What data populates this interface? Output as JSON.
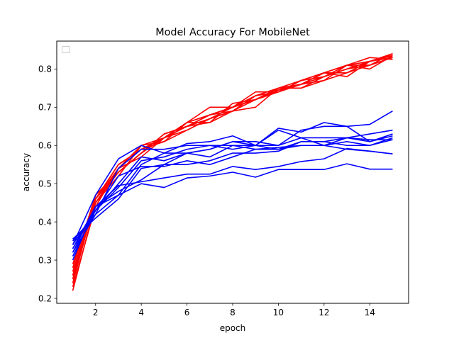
{
  "chart_data": {
    "type": "line",
    "title": "Model Accuracy For MobileNet",
    "xlabel": "epoch",
    "ylabel": "accuracy",
    "xlim": [
      0.3,
      15.7
    ],
    "ylim": [
      0.187,
      0.873
    ],
    "xticks": [
      2,
      4,
      6,
      8,
      10,
      12,
      14
    ],
    "yticks": [
      0.2,
      0.3,
      0.4,
      0.5,
      0.6,
      0.7,
      0.8
    ],
    "xtick_labels": [
      "2",
      "4",
      "6",
      "8",
      "10",
      "12",
      "14"
    ],
    "ytick_labels": [
      "0.2",
      "0.3",
      "0.4",
      "0.5",
      "0.6",
      "0.7",
      "0.8"
    ],
    "grid": false,
    "legend": {
      "placement": "upper-left",
      "entries": []
    },
    "x": [
      1,
      2,
      3,
      4,
      5,
      6,
      7,
      8,
      9,
      10,
      11,
      12,
      13,
      14,
      15
    ],
    "series": [
      {
        "color": "#ff0000",
        "values": [
          0.22,
          0.45,
          0.53,
          0.58,
          0.62,
          0.65,
          0.68,
          0.7,
          0.72,
          0.74,
          0.76,
          0.78,
          0.8,
          0.81,
          0.83
        ]
      },
      {
        "color": "#ff0000",
        "values": [
          0.24,
          0.46,
          0.54,
          0.59,
          0.62,
          0.66,
          0.7,
          0.7,
          0.72,
          0.745,
          0.76,
          0.77,
          0.79,
          0.82,
          0.84
        ]
      },
      {
        "color": "#ff0000",
        "values": [
          0.25,
          0.47,
          0.53,
          0.58,
          0.63,
          0.65,
          0.67,
          0.69,
          0.73,
          0.75,
          0.77,
          0.79,
          0.78,
          0.82,
          0.835
        ]
      },
      {
        "color": "#ff0000",
        "values": [
          0.26,
          0.45,
          0.52,
          0.6,
          0.62,
          0.66,
          0.68,
          0.7,
          0.74,
          0.74,
          0.76,
          0.79,
          0.81,
          0.81,
          0.84
        ]
      },
      {
        "color": "#ff0000",
        "values": [
          0.27,
          0.46,
          0.55,
          0.59,
          0.61,
          0.64,
          0.67,
          0.69,
          0.7,
          0.75,
          0.75,
          0.77,
          0.81,
          0.83,
          0.825
        ]
      },
      {
        "color": "#ff0000",
        "values": [
          0.23,
          0.44,
          0.54,
          0.57,
          0.62,
          0.66,
          0.66,
          0.71,
          0.72,
          0.74,
          0.77,
          0.78,
          0.8,
          0.82,
          0.83
        ]
      },
      {
        "color": "#ff0000",
        "values": [
          0.28,
          0.47,
          0.53,
          0.58,
          0.63,
          0.65,
          0.68,
          0.69,
          0.73,
          0.75,
          0.76,
          0.79,
          0.81,
          0.8,
          0.835
        ]
      },
      {
        "color": "#ff0000",
        "values": [
          0.26,
          0.46,
          0.55,
          0.59,
          0.62,
          0.64,
          0.67,
          0.7,
          0.72,
          0.745,
          0.76,
          0.78,
          0.8,
          0.82,
          0.84
        ]
      },
      {
        "color": "#ff0000",
        "values": [
          0.29,
          0.45,
          0.54,
          0.6,
          0.61,
          0.66,
          0.68,
          0.7,
          0.73,
          0.74,
          0.77,
          0.79,
          0.79,
          0.81,
          0.83
        ]
      },
      {
        "color": "#ff0000",
        "values": [
          0.25,
          0.46,
          0.53,
          0.58,
          0.62,
          0.65,
          0.66,
          0.69,
          0.72,
          0.75,
          0.75,
          0.78,
          0.81,
          0.82,
          0.835
        ]
      },
      {
        "color": "#0000ff",
        "values": [
          0.34,
          0.47,
          0.565,
          0.6,
          0.58,
          0.605,
          0.61,
          0.625,
          0.6,
          0.645,
          0.635,
          0.66,
          0.65,
          0.655,
          0.69
        ]
      },
      {
        "color": "#0000ff",
        "values": [
          0.35,
          0.42,
          0.54,
          0.59,
          0.59,
          0.6,
          0.6,
          0.6,
          0.6,
          0.64,
          0.62,
          0.6,
          0.62,
          0.615,
          0.615
        ]
      },
      {
        "color": "#0000ff",
        "values": [
          0.33,
          0.43,
          0.5,
          0.57,
          0.56,
          0.58,
          0.59,
          0.61,
          0.61,
          0.6,
          0.64,
          0.65,
          0.65,
          0.61,
          0.625
        ]
      },
      {
        "color": "#0000ff",
        "values": [
          0.32,
          0.44,
          0.48,
          0.51,
          0.55,
          0.58,
          0.57,
          0.6,
          0.59,
          0.59,
          0.6,
          0.6,
          0.61,
          0.6,
          0.62
        ]
      },
      {
        "color": "#0000ff",
        "values": [
          0.31,
          0.43,
          0.49,
          0.56,
          0.57,
          0.59,
          0.6,
          0.59,
          0.6,
          0.59,
          0.61,
          0.61,
          0.62,
          0.61,
          0.63
        ]
      },
      {
        "color": "#0000ff",
        "values": [
          0.3,
          0.44,
          0.47,
          0.55,
          0.58,
          0.58,
          0.59,
          0.61,
          0.6,
          0.6,
          0.62,
          0.62,
          0.62,
          0.63,
          0.64
        ]
      },
      {
        "color": "#0000ff",
        "values": [
          0.355,
          0.41,
          0.46,
          0.54,
          0.55,
          0.55,
          0.56,
          0.58,
          0.58,
          0.585,
          0.61,
          0.61,
          0.6,
          0.6,
          0.615
        ]
      },
      {
        "color": "#0000ff",
        "values": [
          0.34,
          0.43,
          0.52,
          0.545,
          0.545,
          0.56,
          0.55,
          0.57,
          0.59,
          0.595,
          0.6,
          0.6,
          0.59,
          0.585,
          0.578
        ]
      },
      {
        "color": "#0000ff",
        "values": [
          0.32,
          0.42,
          0.47,
          0.5,
          0.49,
          0.515,
          0.52,
          0.53,
          0.517,
          0.537,
          0.537,
          0.537,
          0.552,
          0.538,
          0.538
        ]
      },
      {
        "color": "#0000ff",
        "values": [
          0.33,
          0.44,
          0.495,
          0.505,
          0.515,
          0.525,
          0.525,
          0.545,
          0.537,
          0.545,
          0.558,
          0.565,
          0.592,
          0.585,
          0.578
        ]
      }
    ]
  }
}
